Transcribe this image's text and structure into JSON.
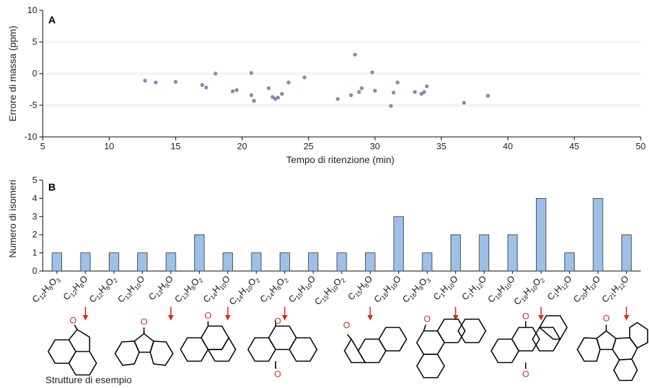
{
  "chart_data": [
    {
      "type": "scatter",
      "panel_label": "A",
      "xlabel": "Tempo di ritenzione (min)",
      "ylabel": "Errore di massa (ppm)",
      "xlim": [
        5,
        50
      ],
      "ylim": [
        -10,
        10
      ],
      "xticks": [
        5,
        10,
        15,
        20,
        25,
        30,
        35,
        40,
        45,
        50
      ],
      "yticks": [
        -10,
        -5,
        0,
        5,
        10
      ],
      "grid": "horizontal bands at -5, 0, 5",
      "points": [
        {
          "x": 12.7,
          "y": -1.1
        },
        {
          "x": 13.5,
          "y": -1.4
        },
        {
          "x": 15.0,
          "y": -1.3
        },
        {
          "x": 17.0,
          "y": -1.8
        },
        {
          "x": 17.3,
          "y": -2.2
        },
        {
          "x": 18.0,
          "y": 0.0
        },
        {
          "x": 19.3,
          "y": -2.8
        },
        {
          "x": 19.6,
          "y": -2.6
        },
        {
          "x": 20.7,
          "y": 0.1
        },
        {
          "x": 20.7,
          "y": -3.4
        },
        {
          "x": 20.9,
          "y": -4.3
        },
        {
          "x": 22.0,
          "y": -2.3
        },
        {
          "x": 22.3,
          "y": -3.7
        },
        {
          "x": 22.5,
          "y": -4.0
        },
        {
          "x": 22.7,
          "y": -3.8
        },
        {
          "x": 23.0,
          "y": -3.2
        },
        {
          "x": 23.5,
          "y": -1.4
        },
        {
          "x": 24.7,
          "y": -0.6
        },
        {
          "x": 27.2,
          "y": -4.0
        },
        {
          "x": 28.2,
          "y": -3.4
        },
        {
          "x": 28.5,
          "y": 3.0
        },
        {
          "x": 28.8,
          "y": -2.9
        },
        {
          "x": 29.0,
          "y": -2.3
        },
        {
          "x": 29.8,
          "y": 0.2
        },
        {
          "x": 30.0,
          "y": -2.7
        },
        {
          "x": 31.2,
          "y": -5.1
        },
        {
          "x": 31.4,
          "y": -3.0
        },
        {
          "x": 31.7,
          "y": -1.4
        },
        {
          "x": 33.0,
          "y": -2.9
        },
        {
          "x": 33.5,
          "y": -3.2
        },
        {
          "x": 33.7,
          "y": -2.9
        },
        {
          "x": 33.9,
          "y": -2.0
        },
        {
          "x": 36.7,
          "y": -4.6
        },
        {
          "x": 38.5,
          "y": -3.5
        }
      ]
    },
    {
      "type": "bar",
      "panel_label": "B",
      "ylabel": "Numero di isomeri",
      "ylim": [
        0,
        5
      ],
      "yticks": [
        0,
        1,
        2,
        3,
        4,
        5
      ],
      "categories": [
        [
          [
            "C",
            ""
          ],
          [
            "12",
            "s"
          ],
          [
            "H",
            ""
          ],
          [
            "8",
            "s"
          ],
          [
            "O",
            ""
          ],
          [
            "3",
            "s"
          ]
        ],
        [
          [
            "C",
            ""
          ],
          [
            "12",
            "s"
          ],
          [
            "H",
            ""
          ],
          [
            "8",
            "s"
          ],
          [
            "O",
            ""
          ]
        ],
        [
          [
            "C",
            ""
          ],
          [
            "12",
            "s"
          ],
          [
            "H",
            ""
          ],
          [
            "8",
            "s"
          ],
          [
            "O",
            ""
          ],
          [
            "2",
            "s"
          ]
        ],
        [
          [
            "C",
            ""
          ],
          [
            "13",
            "s"
          ],
          [
            "H",
            ""
          ],
          [
            "10",
            "s"
          ],
          [
            "O",
            ""
          ]
        ],
        [
          [
            "C",
            ""
          ],
          [
            "13",
            "s"
          ],
          [
            "H",
            ""
          ],
          [
            "8",
            "s"
          ],
          [
            "O",
            ""
          ]
        ],
        [
          [
            "C",
            ""
          ],
          [
            "13",
            "s"
          ],
          [
            "H",
            ""
          ],
          [
            "8",
            "s"
          ],
          [
            "O",
            ""
          ],
          [
            "2",
            "s"
          ]
        ],
        [
          [
            "C",
            ""
          ],
          [
            "14",
            "s"
          ],
          [
            "H",
            ""
          ],
          [
            "10",
            "s"
          ],
          [
            "O",
            ""
          ]
        ],
        [
          [
            "C",
            ""
          ],
          [
            "14",
            "s"
          ],
          [
            "H",
            ""
          ],
          [
            "10",
            "s"
          ],
          [
            "O",
            ""
          ],
          [
            "2",
            "s"
          ]
        ],
        [
          [
            "C",
            ""
          ],
          [
            "14",
            "s"
          ],
          [
            "H",
            ""
          ],
          [
            "8",
            "s"
          ],
          [
            "O",
            ""
          ],
          [
            "2",
            "s"
          ]
        ],
        [
          [
            "C",
            ""
          ],
          [
            "15",
            "s"
          ],
          [
            "H",
            ""
          ],
          [
            "10",
            "s"
          ],
          [
            "O",
            ""
          ]
        ],
        [
          [
            "C",
            ""
          ],
          [
            "15",
            "s"
          ],
          [
            "H",
            ""
          ],
          [
            "10",
            "s"
          ],
          [
            "O",
            ""
          ],
          [
            "2",
            "s"
          ]
        ],
        [
          [
            "C",
            ""
          ],
          [
            "15",
            "s"
          ],
          [
            "H",
            ""
          ],
          [
            "8",
            "s"
          ],
          [
            "O",
            ""
          ]
        ],
        [
          [
            "C",
            ""
          ],
          [
            "16",
            "s"
          ],
          [
            "H",
            ""
          ],
          [
            "10",
            "s"
          ],
          [
            "O",
            ""
          ]
        ],
        [
          [
            "C",
            ""
          ],
          [
            "16",
            "s"
          ],
          [
            "H",
            ""
          ],
          [
            "8",
            "s"
          ],
          [
            "O",
            ""
          ],
          [
            "3",
            "s"
          ]
        ],
        [
          [
            "C",
            ""
          ],
          [
            "1",
            "s"
          ],
          [
            "H",
            ""
          ],
          [
            "10",
            "s"
          ],
          [
            "O",
            ""
          ]
        ],
        [
          [
            "C",
            ""
          ],
          [
            "1",
            "s"
          ],
          [
            "H",
            ""
          ],
          [
            "12",
            "s"
          ],
          [
            "O",
            ""
          ]
        ],
        [
          [
            "C",
            ""
          ],
          [
            "18",
            "s"
          ],
          [
            "H",
            ""
          ],
          [
            "10",
            "s"
          ],
          [
            "O",
            ""
          ]
        ],
        [
          [
            "C",
            ""
          ],
          [
            "18",
            "s"
          ],
          [
            "H",
            ""
          ],
          [
            "10",
            "s"
          ],
          [
            "O",
            ""
          ],
          [
            "2",
            "s"
          ]
        ],
        [
          [
            "C",
            ""
          ],
          [
            "1",
            "s"
          ],
          [
            "H",
            ""
          ],
          [
            "12",
            "s"
          ],
          [
            "O",
            ""
          ]
        ],
        [
          [
            "C",
            ""
          ],
          [
            "20",
            "s"
          ],
          [
            "H",
            ""
          ],
          [
            "12",
            "s"
          ],
          [
            "O",
            ""
          ]
        ],
        [
          [
            "C",
            ""
          ],
          [
            "21",
            "s"
          ],
          [
            "H",
            ""
          ],
          [
            "12",
            "s"
          ],
          [
            "O",
            ""
          ]
        ]
      ],
      "values": [
        1,
        1,
        1,
        1,
        1,
        2,
        1,
        1,
        1,
        1,
        1,
        1,
        3,
        1,
        2,
        2,
        2,
        4,
        1,
        4,
        2
      ]
    }
  ],
  "structures": {
    "oxygen_label": "O",
    "arrow_categories": [
      1,
      4,
      6,
      8,
      11,
      14,
      17,
      20
    ],
    "caption": "Strutture di esempio"
  },
  "colors": {
    "bar_fill": "#9dc0e8",
    "point_fill": "#9b86b3",
    "arrow": "#d62a1e",
    "oxygen": "#d62a1e"
  }
}
